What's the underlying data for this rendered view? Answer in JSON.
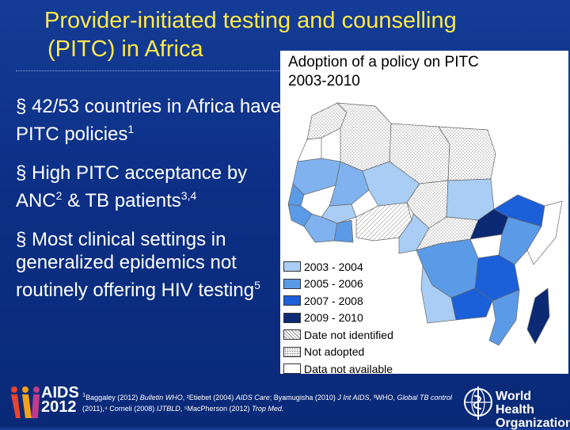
{
  "title": {
    "line1": "Provider-initiated testing and counselling",
    "line2": "(PITC) in Africa"
  },
  "bullets": [
    {
      "marker": "§",
      "text": "42/53 countries in Africa have PITC policies",
      "sup": "1"
    },
    {
      "marker": "§",
      "text": "High PITC acceptance by ANC",
      "sup": "2",
      "text2": " & TB patients",
      "sup2": "3,4"
    },
    {
      "marker": "§",
      "text": "Most clinical settings in generalized epidemics not routinely offering HIV testing",
      "sup": "5"
    }
  ],
  "map": {
    "title_line1": "Adoption of a policy on PITC",
    "title_line2": "2003-2010",
    "legend": [
      {
        "label": "2003 - 2004",
        "color": "#a9cdf4"
      },
      {
        "label": "2005 - 2006",
        "color": "#5b9ae6"
      },
      {
        "label": "2007 - 2008",
        "color": "#1b5fd9"
      },
      {
        "label": "2009 - 2010",
        "color": "#0b2a73"
      },
      {
        "label": "Date not identified",
        "color": "hatch"
      },
      {
        "label": "Not adopted",
        "color": "dots"
      },
      {
        "label": "Data not available",
        "color": "#ffffff"
      }
    ]
  },
  "references": {
    "r1": "Baggaley (2012) ",
    "r1j": "Bulletin WHO",
    "r2": ", ²Etiebet (2004) ",
    "r2j": "AIDS Care",
    "r3": "; Byamugisha (2010) ",
    "r3j": "J Int AIDS",
    "r4": ", ³WHO, ",
    "r4j": "Global TB control",
    "r5": " (2011),⁴ Corneli (2008) ",
    "r5j": "IJTBLD",
    "r6": ", ⁵MacPherson (2012) ",
    "r6j": "Trop Med."
  },
  "logos": {
    "aids_line1": "AIDS",
    "aids_line2": "2012",
    "who_line1": "World Health",
    "who_line2": "Organization"
  }
}
